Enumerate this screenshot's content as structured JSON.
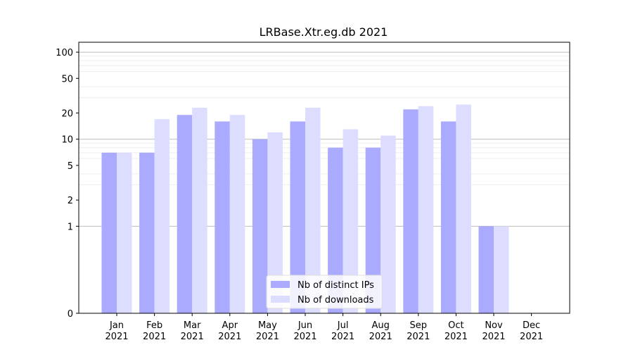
{
  "chart_data": {
    "type": "bar",
    "title": "LRBase.Xtr.eg.db 2021",
    "xlabel": "",
    "ylabel": "",
    "y_scale": "symlog",
    "ylim": [
      0,
      130
    ],
    "grid": true,
    "legend_position": "lower center",
    "categories": [
      [
        "Jan",
        "2021"
      ],
      [
        "Feb",
        "2021"
      ],
      [
        "Mar",
        "2021"
      ],
      [
        "Apr",
        "2021"
      ],
      [
        "May",
        "2021"
      ],
      [
        "Jun",
        "2021"
      ],
      [
        "Jul",
        "2021"
      ],
      [
        "Aug",
        "2021"
      ],
      [
        "Sep",
        "2021"
      ],
      [
        "Oct",
        "2021"
      ],
      [
        "Nov",
        "2021"
      ],
      [
        "Dec",
        "2021"
      ]
    ],
    "y_ticks": [
      0,
      1,
      2,
      5,
      10,
      20,
      50,
      100
    ],
    "series": [
      {
        "name": "Nb of distinct IPs",
        "color": "#aaaaff",
        "values": [
          7,
          7,
          19,
          16,
          10,
          16,
          8,
          8,
          22,
          16,
          1,
          0
        ]
      },
      {
        "name": "Nb of downloads",
        "color": "#ddddff",
        "values": [
          7,
          17,
          23,
          19,
          12,
          23,
          13,
          11,
          24,
          25,
          1,
          0
        ]
      }
    ]
  }
}
